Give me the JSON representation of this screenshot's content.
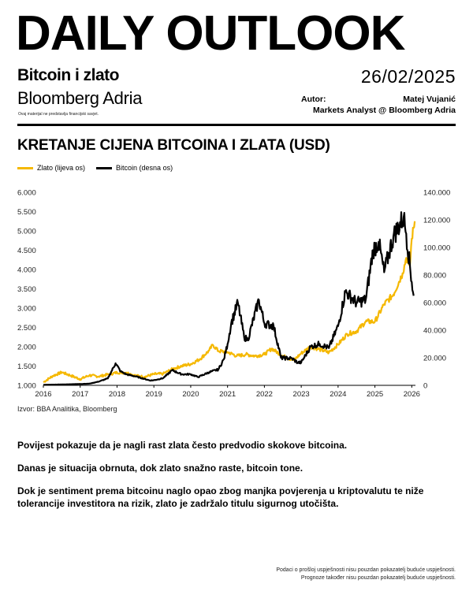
{
  "header": {
    "headline": "DAILY OUTLOOK",
    "subtitle": "Bitcoin i zlato",
    "publisher": "Bloomberg Adria",
    "disclaimer": "Ovaj materijal ne predstavlja financijski savjet.",
    "date": "26/02/2025",
    "author_label": "Autor:",
    "author_name": "Matej Vujanić",
    "author_role": "Markets Analyst @ Bloomberg Adria"
  },
  "chart_data": {
    "type": "line",
    "title": "KRETANJE CIJENA BITCOINA I ZLATA  (USD)",
    "legend_position": "top-left",
    "grid": false,
    "x_ticks": [
      "2016",
      "2017",
      "2018",
      "2019",
      "2020",
      "2021",
      "2022",
      "2023",
      "2024",
      "2025",
      "2026"
    ],
    "xlim": [
      2016,
      2026.1
    ],
    "left_axis": {
      "ylim": [
        1000,
        6000
      ],
      "ticks": [
        1000,
        1500,
        2000,
        2500,
        3000,
        3500,
        4000,
        4500,
        5000,
        5500,
        6000
      ],
      "tick_labels": [
        "1.000",
        "1.500",
        "2.000",
        "2.500",
        "3.000",
        "3.500",
        "4.000",
        "4.500",
        "5.000",
        "5.500",
        "6.000"
      ]
    },
    "right_axis": {
      "ylim": [
        0,
        140000
      ],
      "ticks": [
        0,
        20000,
        40000,
        60000,
        80000,
        100000,
        120000,
        140000
      ],
      "tick_labels": [
        "0",
        "20.000",
        "40.000",
        "60.000",
        "80.000",
        "100.000",
        "120.000",
        "140.000"
      ]
    },
    "series": [
      {
        "name": "Zlato (lijeva os)",
        "axis": "left",
        "color": "#f5b800",
        "x": [
          2016.0,
          2016.25,
          2016.5,
          2016.75,
          2017.0,
          2017.25,
          2017.5,
          2017.75,
          2018.0,
          2018.25,
          2018.5,
          2018.75,
          2019.0,
          2019.25,
          2019.5,
          2019.75,
          2020.0,
          2020.25,
          2020.5,
          2020.6,
          2020.75,
          2021.0,
          2021.25,
          2021.5,
          2021.75,
          2022.0,
          2022.2,
          2022.5,
          2022.8,
          2023.0,
          2023.25,
          2023.5,
          2023.75,
          2024.0,
          2024.25,
          2024.5,
          2024.75,
          2025.0,
          2025.25,
          2025.5,
          2025.75,
          2025.85,
          2025.95,
          2026.0,
          2026.08
        ],
        "y": [
          1080,
          1240,
          1340,
          1250,
          1160,
          1260,
          1230,
          1280,
          1330,
          1330,
          1250,
          1220,
          1290,
          1300,
          1420,
          1500,
          1550,
          1680,
          1900,
          2050,
          1890,
          1860,
          1760,
          1800,
          1760,
          1800,
          1950,
          1760,
          1650,
          1830,
          2000,
          1930,
          1850,
          2060,
          2330,
          2400,
          2650,
          2650,
          3100,
          3350,
          3900,
          4300,
          4100,
          4800,
          5250
        ]
      },
      {
        "name": "Bitcoin (desna os)",
        "axis": "right",
        "color": "#000000",
        "x": [
          2016.0,
          2016.5,
          2017.0,
          2017.25,
          2017.5,
          2017.75,
          2017.96,
          2018.1,
          2018.25,
          2018.5,
          2018.9,
          2019.0,
          2019.25,
          2019.5,
          2019.75,
          2020.0,
          2020.2,
          2020.5,
          2020.75,
          2020.9,
          2021.0,
          2021.1,
          2021.28,
          2021.45,
          2021.55,
          2021.85,
          2022.0,
          2022.25,
          2022.45,
          2022.75,
          2022.9,
          2023.0,
          2023.25,
          2023.5,
          2023.75,
          2024.0,
          2024.2,
          2024.5,
          2024.75,
          2024.95,
          2025.1,
          2025.25,
          2025.5,
          2025.78,
          2025.85,
          2026.0,
          2026.05
        ],
        "y": [
          400,
          600,
          1000,
          1200,
          2700,
          5000,
          16000,
          10000,
          8000,
          6500,
          3500,
          3700,
          5200,
          11000,
          8000,
          8000,
          6000,
          9500,
          11500,
          19000,
          30000,
          45000,
          60000,
          35000,
          33000,
          62000,
          45000,
          43000,
          20000,
          19500,
          16500,
          16500,
          28000,
          30000,
          27000,
          43000,
          68000,
          60000,
          62000,
          98000,
          104000,
          82000,
          108000,
          122000,
          110000,
          75000,
          65000
        ]
      }
    ],
    "source": "Izvor: BBA Analitika, Bloomberg"
  },
  "body": {
    "p1": "Povijest pokazuje da je nagli rast zlata često predvodio skokove bitcoina.",
    "p2": "Danas je situacija obrnuta, dok zlato snažno raste, bitcoin tone.",
    "p3": "Dok je sentiment prema bitcoinu naglo opao zbog manjka povjerenja u kriptovalutu te niže tolerancije investitora na rizik, zlato je zadržalo titulu sigurnog utočišta."
  },
  "footer": {
    "line1": "Podaci o prošloj uspješnosti nisu pouzdan pokazatelj buduće uspješnosti.",
    "line2": "Prognoze također nisu pouzdan pokazatelj buduće uspješnosti."
  }
}
